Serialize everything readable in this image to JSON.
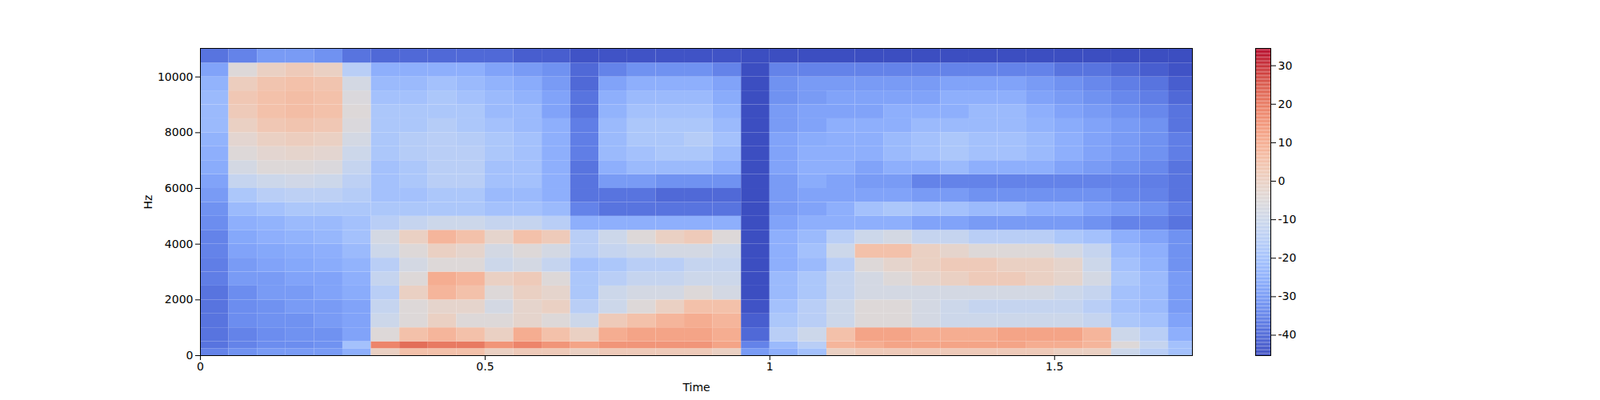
{
  "chart_data": {
    "type": "spectrogram",
    "xlabel": "Time",
    "ylabel": "Hz",
    "xlim": [
      0,
      1.742
    ],
    "xticks": [
      0,
      0.5,
      1,
      1.5
    ],
    "ylim": [
      0,
      11025
    ],
    "yticks": [
      0,
      2000,
      4000,
      6000,
      8000,
      10000
    ],
    "cells": {
      "x_edges": [
        0,
        0.05,
        0.1,
        0.15,
        0.2,
        0.25,
        0.3,
        0.35,
        0.4,
        0.45,
        0.5,
        0.55,
        0.6,
        0.65,
        0.7,
        0.75,
        0.8,
        0.85,
        0.9,
        0.95,
        1,
        1.05,
        1.1,
        1.15,
        1.2,
        1.25,
        1.3,
        1.35,
        1.4,
        1.45,
        1.5,
        1.55,
        1.6,
        1.65,
        1.7,
        1.75
      ],
      "y_edges": [
        0,
        250,
        500,
        1000,
        1500,
        2000,
        2500,
        3000,
        3500,
        4000,
        4500,
        5000,
        5500,
        6000,
        6500,
        7000,
        7500,
        8000,
        8500,
        9000,
        9500,
        10000,
        10500,
        11025
      ],
      "values": [
        [
          -35,
          -38,
          -38,
          -38,
          -38,
          -38,
          -36,
          -36,
          -35,
          -35,
          -33,
          -32,
          -30,
          -28,
          -26,
          -25,
          -24,
          -22,
          -22,
          -22,
          -24,
          -28,
          -38
        ],
        [
          -32,
          -35,
          -35,
          -33,
          -33,
          -33,
          -30,
          -30,
          -28,
          -27,
          -25,
          -22,
          -18,
          -12,
          -8,
          -5,
          -3,
          0,
          2,
          3,
          1,
          -5,
          -35
        ],
        [
          -30,
          -33,
          -33,
          -32,
          -32,
          -30,
          -30,
          -28,
          -27,
          -25,
          -24,
          -20,
          -15,
          -10,
          -5,
          -3,
          0,
          3,
          5,
          5,
          4,
          0,
          -30
        ],
        [
          -30,
          -33,
          -32,
          -32,
          -30,
          -30,
          -28,
          -27,
          -26,
          -24,
          -22,
          -18,
          -14,
          -9,
          -5,
          -2,
          1,
          4,
          6,
          6,
          5,
          2,
          -30
        ],
        [
          -30,
          -32,
          -32,
          -30,
          -30,
          -28,
          -28,
          -26,
          -25,
          -23,
          -22,
          -18,
          -14,
          -10,
          -6,
          -3,
          0,
          3,
          5,
          5,
          4,
          0,
          -32
        ],
        [
          -25,
          -20,
          -28,
          -28,
          -28,
          -26,
          -25,
          -24,
          -22,
          -20,
          -20,
          -18,
          -16,
          -14,
          -12,
          -10,
          -8,
          -6,
          -5,
          -6,
          -8,
          -15,
          -38
        ],
        [
          0,
          18,
          -5,
          -10,
          -12,
          -15,
          -12,
          -15,
          -10,
          -8,
          -15,
          -18,
          -20,
          -20,
          -20,
          -18,
          -18,
          -18,
          -18,
          -20,
          -22,
          -25,
          -40
        ],
        [
          5,
          22,
          5,
          -5,
          -5,
          0,
          -5,
          -8,
          -5,
          0,
          -12,
          -18,
          -20,
          -18,
          -18,
          -16,
          -16,
          -18,
          -18,
          -20,
          -22,
          -25,
          -40
        ],
        [
          5,
          20,
          8,
          0,
          -2,
          8,
          10,
          -5,
          0,
          8,
          -10,
          -18,
          -18,
          -15,
          -15,
          -15,
          -15,
          -16,
          -18,
          -18,
          -20,
          -25,
          -40
        ],
        [
          5,
          20,
          5,
          -5,
          -2,
          5,
          8,
          -5,
          -2,
          5,
          -10,
          -18,
          -18,
          -15,
          -15,
          -15,
          -16,
          -18,
          -18,
          -20,
          -22,
          -25,
          -40
        ],
        [
          0,
          15,
          0,
          -5,
          -8,
          -5,
          0,
          -10,
          -8,
          -2,
          -12,
          -20,
          -22,
          -20,
          -20,
          -18,
          -18,
          -20,
          -22,
          -22,
          -24,
          -28,
          -40
        ],
        [
          2,
          18,
          10,
          -2,
          -2,
          0,
          2,
          -8,
          -5,
          5,
          -12,
          -20,
          -22,
          -20,
          -20,
          -20,
          -20,
          -22,
          -22,
          -24,
          -26,
          -30,
          -42
        ],
        [
          2,
          15,
          5,
          -5,
          0,
          -2,
          -5,
          -12,
          -8,
          2,
          -15,
          -22,
          -25,
          -25,
          -25,
          -25,
          -25,
          -25,
          -28,
          -28,
          -30,
          -32,
          -42
        ],
        [
          0,
          12,
          0,
          -10,
          -15,
          -18,
          -18,
          -20,
          -15,
          -15,
          -25,
          -35,
          -38,
          -38,
          -38,
          -36,
          -36,
          -36,
          -38,
          -38,
          -40,
          -40,
          -44
        ],
        [
          2,
          15,
          10,
          2,
          -10,
          -10,
          -15,
          -18,
          -12,
          -10,
          -25,
          -38,
          -38,
          -30,
          -25,
          -22,
          -22,
          -22,
          -24,
          -25,
          -28,
          -35,
          -44
        ],
        [
          2,
          15,
          12,
          5,
          -5,
          -8,
          -12,
          -15,
          -10,
          -5,
          -25,
          -38,
          -38,
          -30,
          -22,
          -20,
          -18,
          -18,
          -20,
          -22,
          -25,
          -32,
          -44
        ],
        [
          2,
          15,
          12,
          8,
          0,
          -8,
          -12,
          -15,
          -8,
          0,
          -25,
          -38,
          -40,
          -32,
          -22,
          -18,
          -18,
          -18,
          -20,
          -22,
          -25,
          -32,
          -44
        ],
        [
          2,
          15,
          12,
          10,
          5,
          -5,
          -10,
          -12,
          -8,
          2,
          -25,
          -38,
          -40,
          -32,
          -22,
          -18,
          -16,
          -18,
          -20,
          -22,
          -25,
          -32,
          -44
        ],
        [
          0,
          12,
          10,
          8,
          5,
          -8,
          -10,
          -12,
          -10,
          -5,
          -25,
          -38,
          -40,
          -32,
          -25,
          -22,
          -20,
          -22,
          -24,
          -26,
          -28,
          -35,
          -44
        ],
        [
          -30,
          -35,
          -40,
          -42,
          -44,
          -45,
          -45,
          -45,
          -45,
          -45,
          -45,
          -45,
          -45,
          -45,
          -45,
          -45,
          -45,
          -45,
          -45,
          -45,
          -45,
          -45,
          -45
        ],
        [
          -25,
          -22,
          -15,
          -18,
          -20,
          -22,
          -22,
          -25,
          -25,
          -25,
          -28,
          -30,
          -30,
          -30,
          -28,
          -28,
          -28,
          -30,
          -30,
          -32,
          -32,
          -35,
          -45
        ],
        [
          -20,
          -15,
          -10,
          -15,
          -15,
          -18,
          -18,
          -22,
          -20,
          -22,
          -25,
          -28,
          -28,
          -26,
          -25,
          -25,
          -26,
          -28,
          -28,
          -30,
          -30,
          -35,
          -45
        ],
        [
          0,
          8,
          5,
          -10,
          -10,
          -12,
          -12,
          -15,
          -10,
          -15,
          -25,
          -25,
          -28,
          -28,
          -25,
          -25,
          -25,
          -25,
          -28,
          -28,
          -30,
          -35,
          -45
        ],
        [
          2,
          10,
          12,
          -5,
          -5,
          -8,
          -8,
          -5,
          5,
          -10,
          -25,
          -20,
          -28,
          -30,
          -28,
          -25,
          -25,
          -25,
          -28,
          -28,
          -30,
          -35,
          -45
        ],
        [
          2,
          12,
          12,
          -5,
          -5,
          -8,
          -5,
          -2,
          5,
          -8,
          -25,
          -18,
          -28,
          -30,
          -25,
          -22,
          -22,
          -25,
          -25,
          -28,
          -30,
          -35,
          -45
        ],
        [
          2,
          12,
          10,
          -8,
          -8,
          -8,
          -2,
          0,
          0,
          -12,
          -28,
          -20,
          -30,
          -35,
          -25,
          -20,
          -20,
          -22,
          -25,
          -28,
          -30,
          -35,
          -45
        ],
        [
          2,
          12,
          10,
          -10,
          -10,
          -8,
          0,
          2,
          -2,
          -12,
          -28,
          -20,
          -30,
          -35,
          -22,
          -18,
          -18,
          -22,
          -25,
          -25,
          -28,
          -35,
          -45
        ],
        [
          2,
          12,
          10,
          -10,
          -12,
          -8,
          2,
          2,
          -5,
          -15,
          -30,
          -22,
          -32,
          -35,
          -25,
          -20,
          -20,
          -22,
          -22,
          -25,
          -28,
          -35,
          -45
        ],
        [
          2,
          12,
          12,
          -10,
          -12,
          -8,
          2,
          0,
          -5,
          -15,
          -30,
          -22,
          -32,
          -35,
          -25,
          -20,
          -20,
          -22,
          -22,
          -25,
          -28,
          -35,
          -45
        ],
        [
          2,
          10,
          12,
          -10,
          -12,
          -8,
          0,
          0,
          -5,
          -15,
          -30,
          -25,
          -32,
          -35,
          -25,
          -22,
          -22,
          -24,
          -25,
          -28,
          -30,
          -35,
          -45
        ],
        [
          0,
          10,
          12,
          -10,
          -12,
          -10,
          -2,
          -2,
          -8,
          -18,
          -30,
          -25,
          -32,
          -35,
          -28,
          -25,
          -25,
          -26,
          -28,
          -30,
          -32,
          -38,
          -45
        ],
        [
          0,
          8,
          8,
          -12,
          -15,
          -12,
          -8,
          -10,
          -12,
          -20,
          -32,
          -28,
          -32,
          -35,
          -30,
          -28,
          -28,
          -28,
          -30,
          -32,
          -34,
          -38,
          -45
        ],
        [
          -10,
          -5,
          -10,
          -18,
          -20,
          -20,
          -18,
          -20,
          -22,
          -25,
          -35,
          -30,
          -34,
          -35,
          -32,
          -30,
          -30,
          -30,
          -32,
          -34,
          -36,
          -40,
          -45
        ],
        [
          -15,
          -12,
          -15,
          -20,
          -22,
          -22,
          -22,
          -24,
          -25,
          -28,
          -35,
          -32,
          -35,
          -36,
          -34,
          -32,
          -32,
          -32,
          -34,
          -36,
          -38,
          -42,
          -45
        ],
        [
          -20,
          -20,
          -25,
          -28,
          -30,
          -30,
          -30,
          -32,
          -32,
          -32,
          -38,
          -36,
          -38,
          -38,
          -38,
          -36,
          -36,
          -38,
          -38,
          -40,
          -42,
          -44,
          -45
        ]
      ]
    },
    "colorbar": {
      "range": [
        -45.3,
        34.5
      ],
      "ticks": [
        -40,
        -30,
        -20,
        -10,
        0,
        10,
        20,
        30
      ]
    }
  }
}
